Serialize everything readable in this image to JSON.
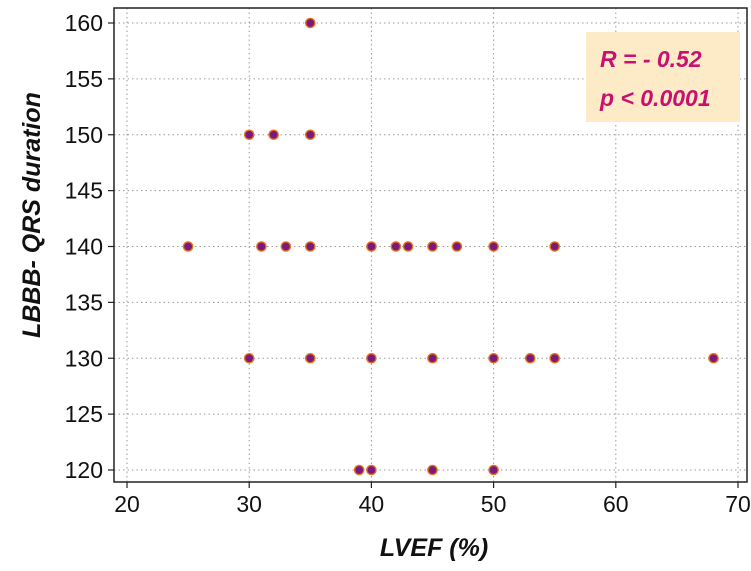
{
  "chart_data": {
    "type": "scatter",
    "xlabel": "LVEF (%)",
    "ylabel": "LBBB- QRS duration",
    "xlim": [
      20,
      70
    ],
    "ylim": [
      120,
      160
    ],
    "xticks": [
      20,
      30,
      40,
      50,
      60,
      70
    ],
    "yticks": [
      120,
      125,
      130,
      135,
      140,
      145,
      150,
      155,
      160
    ],
    "grid": true,
    "grid_style": "dotted",
    "annotation": {
      "r_text": "R = - 0.52",
      "p_text": "p < 0.0001",
      "background": "#fdebc8",
      "text_color": "#c8106e",
      "placement": "top-right"
    },
    "marker_fill": "#7a1a7e",
    "marker_edge": "#e2721e",
    "points": [
      {
        "x": 35,
        "y": 160
      },
      {
        "x": 30,
        "y": 150
      },
      {
        "x": 32,
        "y": 150
      },
      {
        "x": 35,
        "y": 150
      },
      {
        "x": 25,
        "y": 140
      },
      {
        "x": 31,
        "y": 140
      },
      {
        "x": 33,
        "y": 140
      },
      {
        "x": 35,
        "y": 140
      },
      {
        "x": 40,
        "y": 140
      },
      {
        "x": 42,
        "y": 140
      },
      {
        "x": 43,
        "y": 140
      },
      {
        "x": 45,
        "y": 140
      },
      {
        "x": 47,
        "y": 140
      },
      {
        "x": 50,
        "y": 140
      },
      {
        "x": 55,
        "y": 140
      },
      {
        "x": 30,
        "y": 130
      },
      {
        "x": 35,
        "y": 130
      },
      {
        "x": 40,
        "y": 130
      },
      {
        "x": 45,
        "y": 130
      },
      {
        "x": 50,
        "y": 130
      },
      {
        "x": 53,
        "y": 130
      },
      {
        "x": 55,
        "y": 130
      },
      {
        "x": 68,
        "y": 130
      },
      {
        "x": 39,
        "y": 120
      },
      {
        "x": 40,
        "y": 120
      },
      {
        "x": 45,
        "y": 120
      },
      {
        "x": 50,
        "y": 120
      }
    ]
  }
}
